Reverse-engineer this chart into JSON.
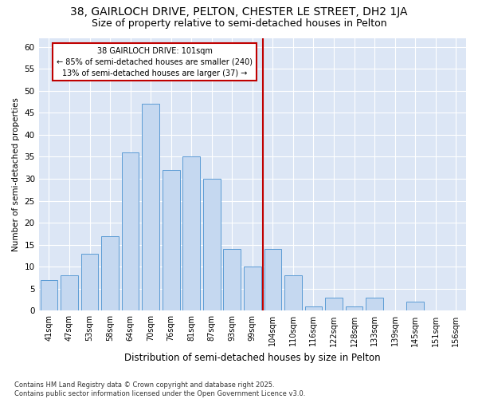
{
  "title1": "38, GAIRLOCH DRIVE, PELTON, CHESTER LE STREET, DH2 1JA",
  "title2": "Size of property relative to semi-detached houses in Pelton",
  "xlabel": "Distribution of semi-detached houses by size in Pelton",
  "ylabel": "Number of semi-detached properties",
  "categories": [
    "41sqm",
    "47sqm",
    "53sqm",
    "58sqm",
    "64sqm",
    "70sqm",
    "76sqm",
    "81sqm",
    "87sqm",
    "93sqm",
    "99sqm",
    "104sqm",
    "110sqm",
    "116sqm",
    "122sqm",
    "128sqm",
    "133sqm",
    "139sqm",
    "145sqm",
    "151sqm",
    "156sqm"
  ],
  "values": [
    7,
    8,
    13,
    17,
    36,
    47,
    32,
    35,
    30,
    14,
    10,
    14,
    8,
    1,
    3,
    1,
    3,
    0,
    2,
    0,
    0
  ],
  "bar_color": "#c5d8f0",
  "bar_edge_color": "#5b9bd5",
  "vline_index": 10,
  "vline_color": "#c00000",
  "annotation_title": "38 GAIRLOCH DRIVE: 101sqm",
  "annotation_line1": "← 85% of semi-detached houses are smaller (240)",
  "annotation_line2": "13% of semi-detached houses are larger (37) →",
  "annotation_box_color": "#c00000",
  "ylim": [
    0,
    62
  ],
  "yticks": [
    0,
    5,
    10,
    15,
    20,
    25,
    30,
    35,
    40,
    45,
    50,
    55,
    60
  ],
  "background_color": "#dce6f5",
  "footer": "Contains HM Land Registry data © Crown copyright and database right 2025.\nContains public sector information licensed under the Open Government Licence v3.0.",
  "title_fontsize": 10,
  "subtitle_fontsize": 9,
  "bar_width": 0.85
}
